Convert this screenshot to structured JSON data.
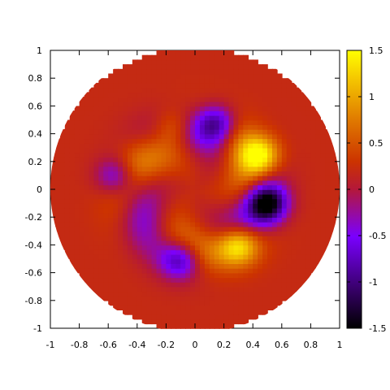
{
  "chart_data": {
    "type": "heatmap",
    "title": "",
    "xlabel": "",
    "ylabel": "",
    "xlim": [
      -1,
      1
    ],
    "ylim": [
      -1,
      1
    ],
    "domain_shape": "unit disk",
    "pattern": "three-armed spiral: arms of positive values (orange to yellow) alternating with negative lobes (purple to black), background near 0.2 (dark orange-red)",
    "value_peaks": {
      "max": 1.5,
      "min": -1.5,
      "positive_lobes": [
        {
          "x": 0.45,
          "y": 0.25,
          "value": 1.5
        },
        {
          "x": 0.3,
          "y": -0.4,
          "value": 1.3
        },
        {
          "x": -0.15,
          "y": 0.45,
          "value": 0.9
        }
      ],
      "negative_lobes": [
        {
          "x": 0.5,
          "y": -0.1,
          "value": -1.5
        },
        {
          "x": 0.15,
          "y": 0.48,
          "value": -1.0
        },
        {
          "x": -0.1,
          "y": -0.5,
          "value": -0.9
        },
        {
          "x": -0.55,
          "y": 0.1,
          "value": -0.7
        }
      ]
    },
    "x_ticks": [
      "-1",
      "-0.8",
      "-0.6",
      "-0.4",
      "-0.2",
      "0",
      "0.2",
      "0.4",
      "0.6",
      "0.8",
      "1"
    ],
    "y_ticks": [
      "1",
      "0.8",
      "0.6",
      "0.4",
      "0.2",
      "0",
      "-0.2",
      "-0.4",
      "-0.6",
      "-0.8",
      "-1"
    ],
    "colorbar": {
      "range": [
        -1.5,
        1.5
      ],
      "ticks": [
        "1.5",
        "1",
        "0.5",
        "0",
        "-0.5",
        "-1",
        "-1.5"
      ],
      "colormap": "gnuplot (black-purple-red-yellow)"
    }
  }
}
